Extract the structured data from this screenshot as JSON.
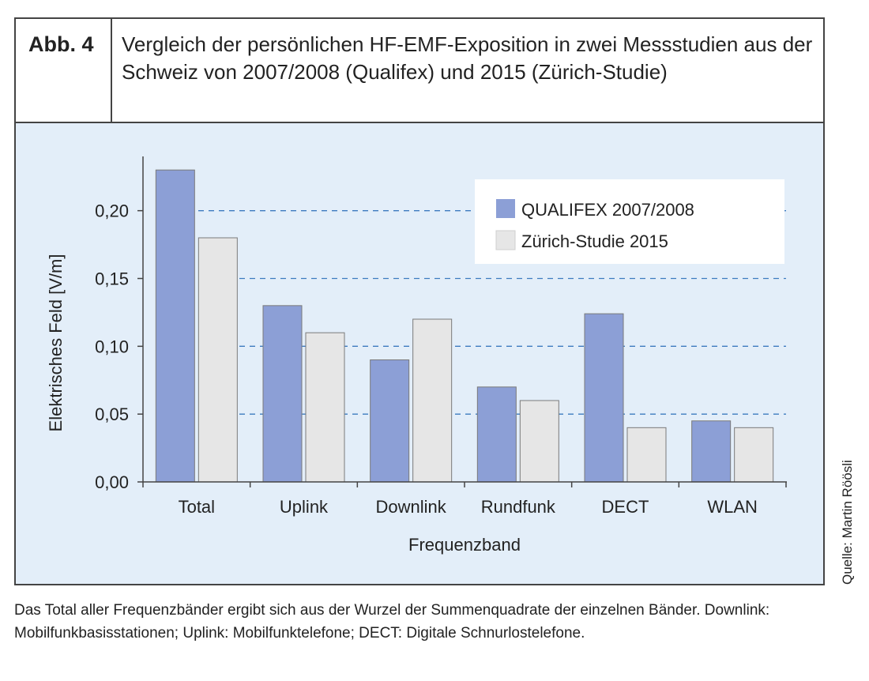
{
  "figure": {
    "label": "Abb. 4",
    "title": "Vergleich der persönlichen HF-EMF-Exposition in zwei Messstudien aus der Schweiz von 2007/2008 (Qualifex) und 2015 (Zürich-Studie)"
  },
  "source": "Quelle: Martin Röösli",
  "caption": "Das Total aller Frequenzbänder ergibt sich aus der Wurzel der Summenquadrate der einzelnen Bänder. Downlink: Mobilfunkbasisstationen; Uplink: Mobilfunktelefone; DECT: Digitale Schnurlostelefone.",
  "chart_data": {
    "type": "bar",
    "title": "",
    "xlabel": "Frequenzband",
    "ylabel": "Elektrisches Feld [V/m]",
    "ylim": [
      0,
      0.24
    ],
    "yticks": [
      0,
      0.05,
      0.1,
      0.15,
      0.2
    ],
    "ytick_labels": [
      "0,00",
      "0,05",
      "0,10",
      "0,15",
      "0,20"
    ],
    "grid": "horizontal dashed",
    "legend_position": "top-right",
    "categories": [
      "Total",
      "Uplink",
      "Downlink",
      "Rundfunk",
      "DECT",
      "WLAN"
    ],
    "series": [
      {
        "name": "QUALIFEX 2007/2008",
        "color": "#8c9fd6",
        "values": [
          0.23,
          0.13,
          0.09,
          0.07,
          0.124,
          0.045
        ]
      },
      {
        "name": "Zürich-Studie 2015",
        "color": "#e6e6e6",
        "values": [
          0.18,
          0.11,
          0.12,
          0.06,
          0.04,
          0.04
        ]
      }
    ]
  }
}
